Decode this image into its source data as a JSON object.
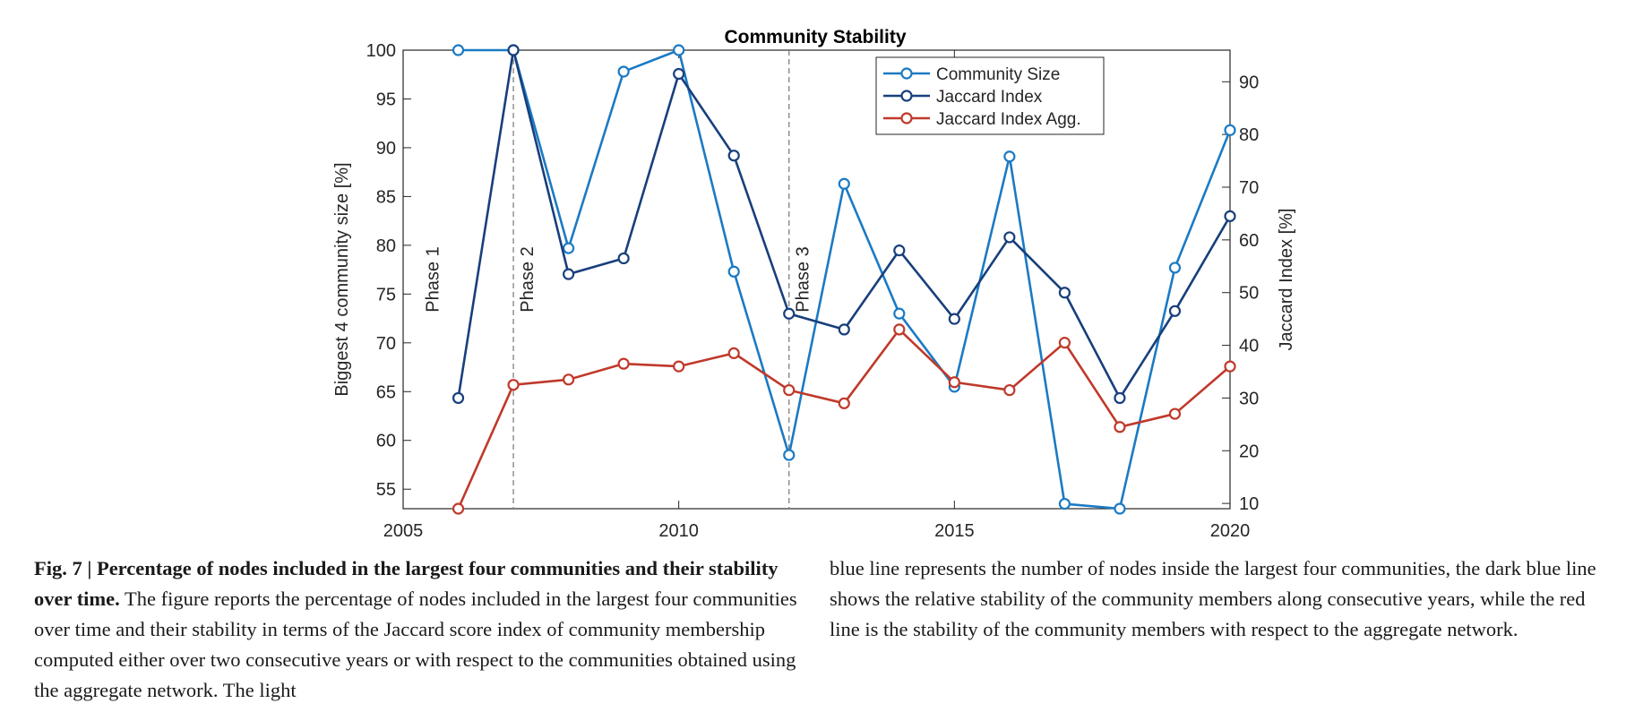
{
  "chart_data": {
    "type": "line",
    "title": "Community Stability",
    "xlabel": "",
    "ylabel": "Biggest 4 community size [%]",
    "y2label": "Jaccard Index [%]",
    "xlim": [
      2005,
      2020
    ],
    "ylim": [
      53,
      100
    ],
    "y2lim": [
      9,
      96
    ],
    "x_ticks": [
      2005,
      2010,
      2015,
      2020
    ],
    "y_ticks": [
      55,
      60,
      65,
      70,
      75,
      80,
      85,
      90,
      95,
      100
    ],
    "y2_ticks": [
      10,
      20,
      30,
      40,
      50,
      60,
      70,
      80,
      90
    ],
    "grid": false,
    "legend_position": "top-right",
    "x": [
      2006,
      2007,
      2008,
      2009,
      2010,
      2011,
      2012,
      2013,
      2014,
      2015,
      2016,
      2017,
      2018,
      2019,
      2020
    ],
    "series": [
      {
        "name": "Community Size",
        "axis": "left",
        "color": "#1b7ac4",
        "values": [
          100,
          100,
          79.7,
          97.8,
          100,
          77.3,
          58.5,
          86.3,
          73,
          65.5,
          89.1,
          53.5,
          53,
          77.7,
          91.8
        ]
      },
      {
        "name": "Jaccard Index",
        "axis": "right",
        "color": "#183f7c",
        "values": [
          30,
          96,
          53.5,
          56.5,
          91.5,
          76,
          46,
          43,
          58,
          45,
          60.5,
          50,
          30,
          46.5,
          64.5
        ]
      },
      {
        "name": "Jaccard Index Agg.",
        "axis": "right",
        "color": "#c0392b",
        "values": [
          9,
          32.5,
          33.5,
          36.5,
          36,
          38.5,
          31.5,
          29,
          43,
          33,
          31.5,
          40.5,
          24.5,
          27,
          36
        ]
      }
    ],
    "annotations": [
      {
        "x": 2006,
        "text": "Phase 1",
        "line": false
      },
      {
        "x": 2007,
        "text": "Phase 2",
        "line": true
      },
      {
        "x": 2012,
        "text": "Phase 3",
        "line": true
      }
    ]
  },
  "caption": {
    "label": "Fig. 7 | Percentage of nodes included in the largest four communities and their stability over time.",
    "text_left": " The figure reports the percentage of nodes included in the largest four communities over time and their stability in terms of the Jaccard score index of community membership computed either over two consecutive years or with respect to the communities obtained using the aggregate network. The light",
    "text_right": "blue line represents the number of nodes inside the largest four communities, the dark blue line shows the relative stability of the community members along consecutive years, while the red line is the stability of the community members with respect to the aggregate network."
  }
}
